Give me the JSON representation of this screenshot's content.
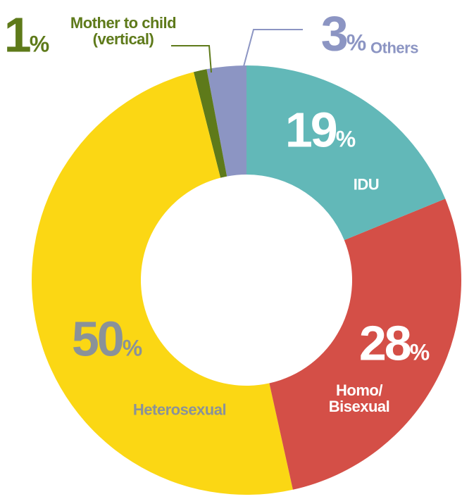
{
  "chart_data": {
    "type": "donut",
    "categories": [
      "IDU",
      "Homo/\nBisexual",
      "Heterosexual",
      "Mother to child\n(vertical)",
      "Others"
    ],
    "values": [
      19,
      28,
      50,
      1,
      3
    ],
    "unit": "%",
    "colors": [
      "#62b8b8",
      "#d44f47",
      "#fbd714",
      "#5e7a1a",
      "#8c95c3"
    ]
  }
}
